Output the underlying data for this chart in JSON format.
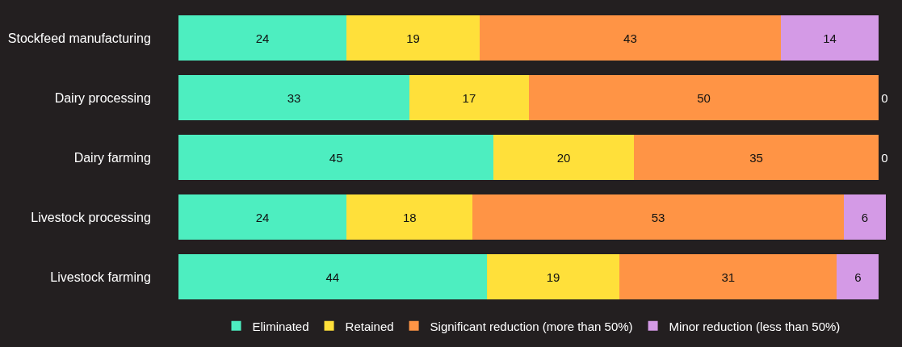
{
  "chart_data": {
    "type": "bar",
    "orientation": "horizontal",
    "stacked": true,
    "data_labels": true,
    "legend": "bottom",
    "grid": false,
    "categories": [
      "Stockfeed manufacturing",
      "Dairy processing",
      "Dairy farming",
      "Livestock processing",
      "Livestock farming"
    ],
    "series": [
      {
        "name": "Eliminated",
        "color": "#4deec0",
        "values": [
          24,
          33,
          45,
          24,
          44
        ]
      },
      {
        "name": "Retained",
        "color": "#ffe03a",
        "values": [
          19,
          17,
          20,
          18,
          19
        ]
      },
      {
        "name": "Significant reduction (more than 50%)",
        "color": "#ff9445",
        "values": [
          43,
          50,
          35,
          53,
          31
        ]
      },
      {
        "name": "Minor reduction (less than 50%)",
        "color": "#d49ae6",
        "values": [
          14,
          0,
          0,
          6,
          6
        ]
      }
    ]
  }
}
